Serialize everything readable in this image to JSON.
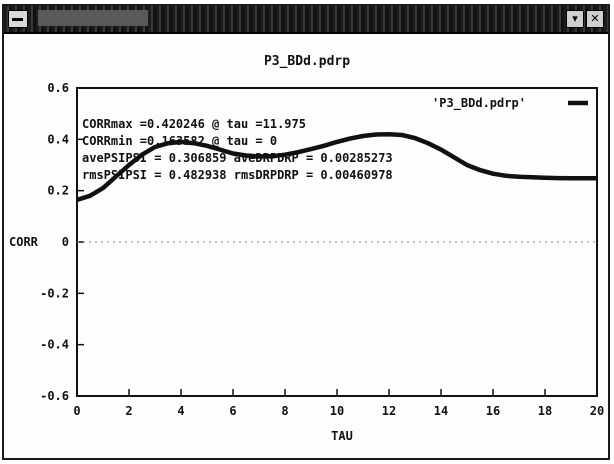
{
  "window": {
    "title": "",
    "buttons": [
      "▾",
      "✕"
    ]
  },
  "chart_data": {
    "type": "line",
    "title": "P3_BDd.pdrp",
    "xlabel": "TAU",
    "ylabel": "CORR",
    "xlim": [
      0,
      20
    ],
    "ylim": [
      -0.6,
      0.6
    ],
    "xticks": [
      0,
      2,
      4,
      6,
      8,
      10,
      12,
      14,
      16,
      18,
      20
    ],
    "yticks": [
      0.6,
      0.4,
      0.2,
      0,
      -0.2,
      -0.4,
      -0.6
    ],
    "ytick_labels": [
      "0.6",
      "0.4",
      "0.2",
      "0",
      "-0.2",
      "-0.4",
      "-0.6"
    ],
    "legend": {
      "label": "'P3_BDd.pdrp'",
      "placement": "top-right"
    },
    "annotations": [
      "CORRmax =0.420246 @ tau =11.975",
      "CORRmin =0.163582 @ tau = 0",
      "avePSIPSI = 0.306859 aveDRPDRP = 0.00285273",
      "rmsPSIPSI = 0.482938 rmsDRPDRP = 0.00460978"
    ],
    "series": [
      {
        "x": [
          0,
          0.5,
          1,
          1.5,
          2,
          2.5,
          3,
          3.5,
          4,
          4.5,
          5,
          5.5,
          6,
          6.5,
          7,
          7.5,
          8,
          8.5,
          9,
          9.5,
          10,
          10.5,
          11,
          11.5,
          12,
          12.5,
          13,
          13.5,
          14,
          14.5,
          15,
          15.5,
          16,
          16.5,
          17,
          17.5,
          18,
          18.5,
          19,
          19.5,
          20
        ],
        "y": [
          0.164,
          0.18,
          0.21,
          0.255,
          0.3,
          0.34,
          0.37,
          0.385,
          0.39,
          0.385,
          0.375,
          0.36,
          0.345,
          0.337,
          0.333,
          0.334,
          0.34,
          0.35,
          0.362,
          0.375,
          0.39,
          0.403,
          0.413,
          0.419,
          0.42,
          0.417,
          0.405,
          0.385,
          0.36,
          0.33,
          0.3,
          0.28,
          0.266,
          0.258,
          0.254,
          0.252,
          0.25,
          0.249,
          0.248,
          0.248,
          0.248
        ]
      }
    ],
    "zero_line": true,
    "grid": false
  }
}
